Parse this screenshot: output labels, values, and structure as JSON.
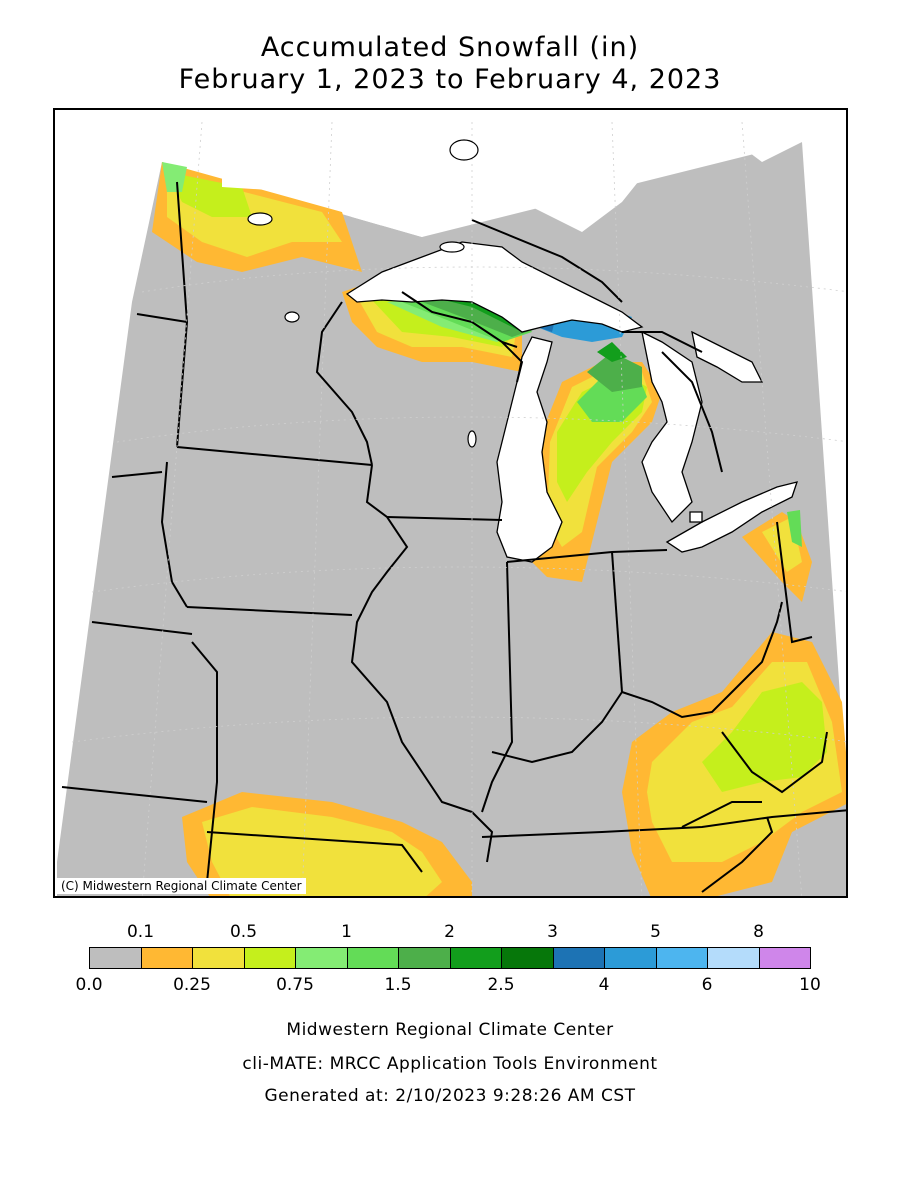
{
  "title_line1": "Accumulated Snowfall (in)",
  "title_line2": "February 1, 2023 to February 4, 2023",
  "copyright": "(C) Midwestern Regional Climate Center",
  "legend": {
    "top_labels": [
      "0.1",
      "0.5",
      "1",
      "2",
      "3",
      "5",
      "8"
    ],
    "bottom_labels": [
      "0.0",
      "0.25",
      "0.75",
      "1.5",
      "2.5",
      "4",
      "6",
      "10"
    ],
    "colors": [
      "#bebebe",
      "#ffb833",
      "#f1e13c",
      "#c5ef1c",
      "#84ec74",
      "#63dc57",
      "#4daf4a",
      "#129e1c",
      "#06770a",
      "#1d73b4",
      "#2c9bd7",
      "#4db5ef",
      "#b4dcfb",
      "#cf86ea"
    ]
  },
  "footer": {
    "line1": "Midwestern Regional Climate Center",
    "line2": "cli-MATE: MRCC Application Tools Environment",
    "line3": "Generated at: 2/10/2023 9:28:26 AM CST"
  }
}
